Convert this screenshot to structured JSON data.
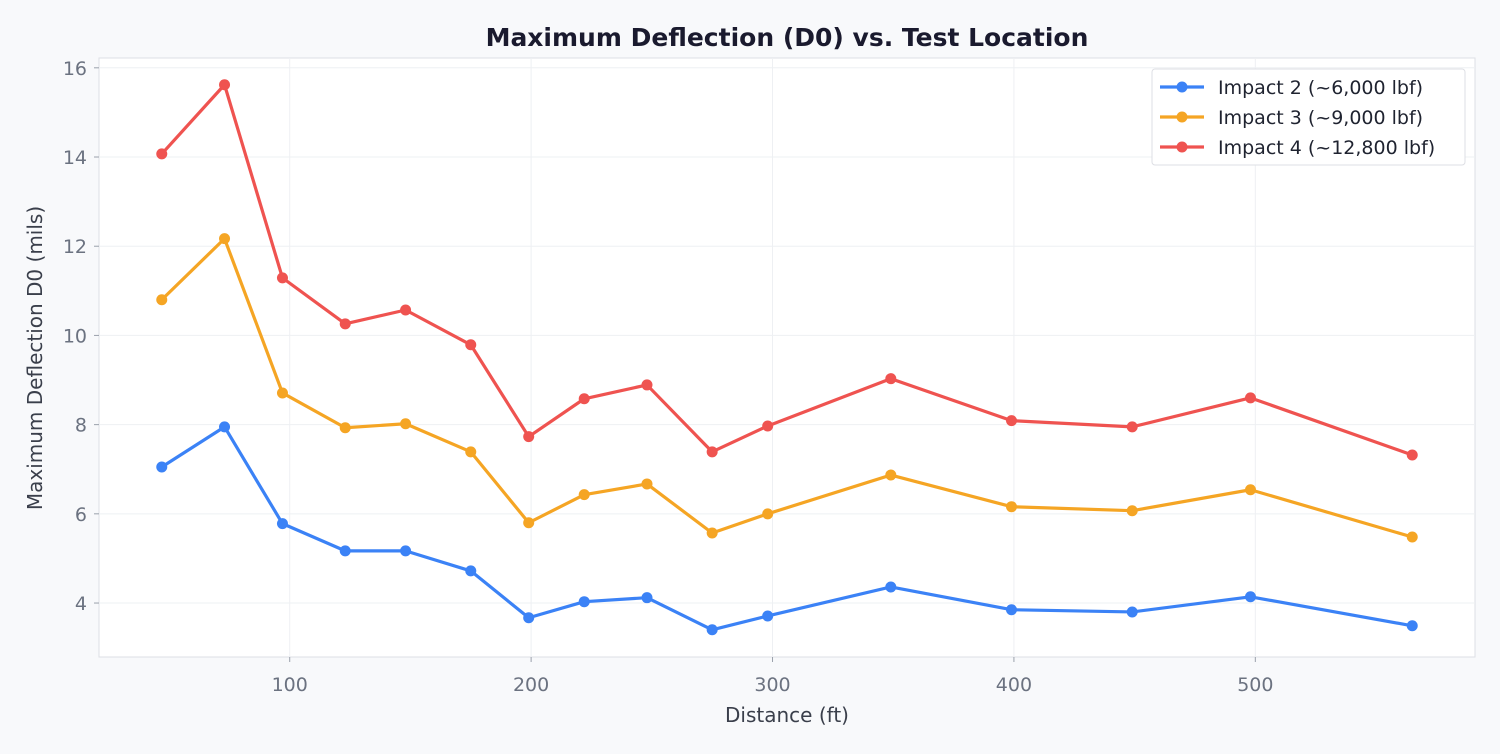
{
  "chart_data": {
    "type": "line",
    "title": "Maximum Deflection (D0) vs. Test Location",
    "xlabel": "Distance (ft)",
    "ylabel": "Maximum Deflection D0 (mils)",
    "xlim": [
      21,
      591
    ],
    "ylim": [
      2.79,
      16.22
    ],
    "xticks": [
      100,
      200,
      300,
      400,
      500
    ],
    "yticks": [
      4,
      6,
      8,
      10,
      12,
      14,
      16
    ],
    "grid": true,
    "legend_position": "top-right",
    "x": [
      47,
      73,
      97,
      123,
      148,
      175,
      199,
      222,
      248,
      275,
      298,
      349,
      399,
      449,
      498,
      565
    ],
    "series": [
      {
        "name": "Impact 2 (~6,000 lbf)",
        "color": "#3b82f6",
        "values": [
          7.05,
          7.95,
          5.78,
          5.17,
          5.17,
          4.72,
          3.67,
          4.03,
          4.12,
          3.4,
          3.71,
          4.36,
          3.85,
          3.8,
          4.14,
          3.49
        ]
      },
      {
        "name": "Impact 3 (~9,000 lbf)",
        "color": "#f5a524",
        "values": [
          10.8,
          12.17,
          8.71,
          7.93,
          8.02,
          7.39,
          5.8,
          6.43,
          6.67,
          5.57,
          6.0,
          6.87,
          6.16,
          6.07,
          6.54,
          5.48
        ]
      },
      {
        "name": "Impact 4 (~12,800 lbf)",
        "color": "#ef5350",
        "values": [
          14.07,
          15.62,
          11.29,
          10.26,
          10.57,
          9.79,
          7.73,
          8.58,
          8.89,
          7.39,
          7.97,
          9.03,
          8.09,
          7.95,
          8.6,
          7.32
        ]
      }
    ]
  }
}
